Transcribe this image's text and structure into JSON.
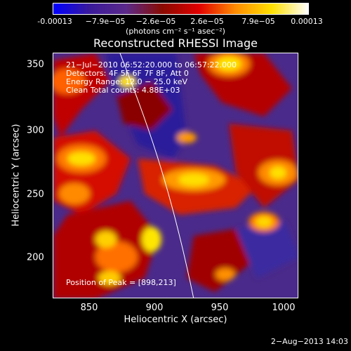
{
  "colorbar": {
    "ticks": [
      "-0.00013",
      "−7.9e−05",
      "−2.6e−05",
      "2.6e−05",
      "7.9e−05",
      "0.00013"
    ],
    "units": "(photons cm⁻² s⁻¹ asec⁻²)",
    "colors": [
      "#0000ff",
      "#3a1a9a",
      "#5b2a8a",
      "#8a0a00",
      "#e00000",
      "#ff8c00",
      "#ffe000",
      "#ffffff"
    ]
  },
  "title": "Reconstructed RHESSI Image",
  "info": {
    "line1": "21−Jul−2010 06:52:20.000 to 06:57:22.000",
    "line2": "Detectors: 4F 5F 6F 7F 8F, Att 0",
    "line3": "Energy Range: 12.0 − 25.0 keV",
    "line4": "Clean    Total counts: 4.88E+03"
  },
  "peak_text": "Position of Peak = [898,213]",
  "axes": {
    "xlabel": "Heliocentric X (arcsec)",
    "ylabel": "Heliocentric Y (arcsec)",
    "xticks": [
      "850",
      "900",
      "950",
      "1000"
    ],
    "yticks": [
      "350",
      "300",
      "250",
      "200"
    ]
  },
  "footer": "2−Aug−2013 14:03"
}
